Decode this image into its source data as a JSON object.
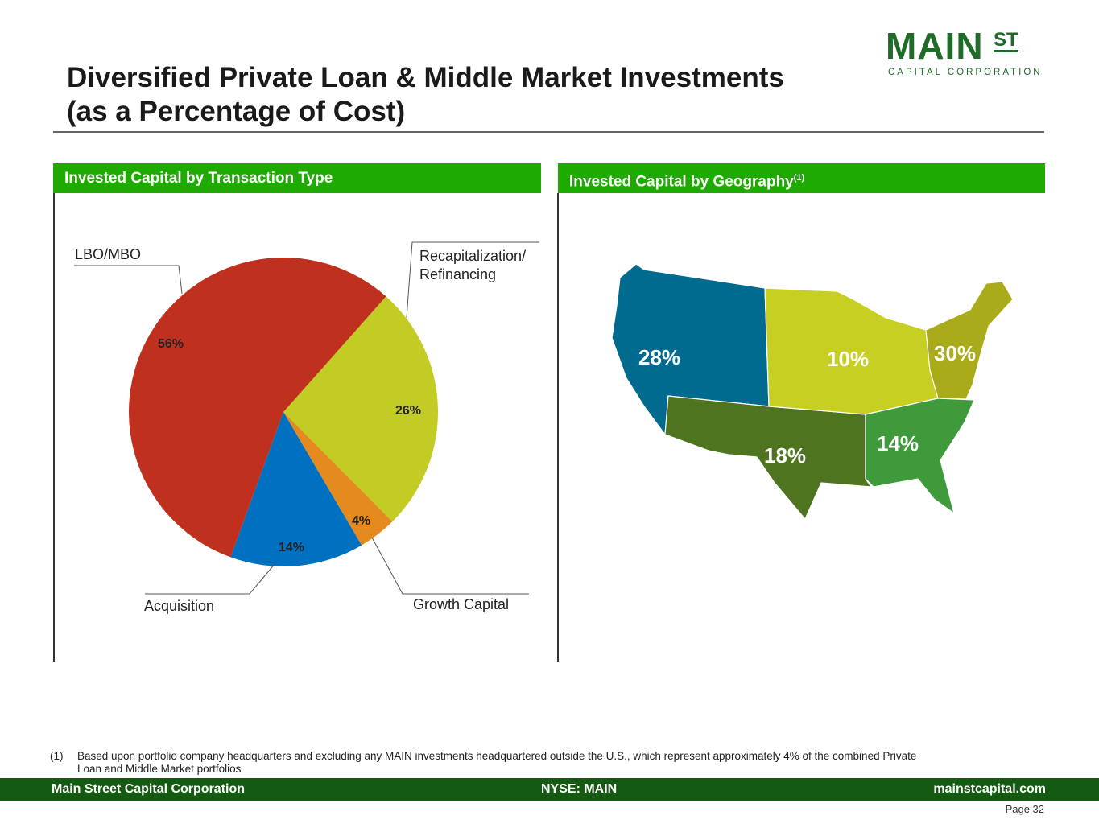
{
  "header": {
    "title_line1": "Diversified Private Loan & Middle Market Investments",
    "title_line2": "(as a Percentage of Cost)"
  },
  "logo": {
    "main": "MAIN",
    "st": "ST",
    "sub": "CAPITAL CORPORATION"
  },
  "panels": {
    "left_title": "Invested Capital by Transaction Type",
    "right_title": "Invested Capital by Geography",
    "right_sup": "(1)"
  },
  "chart_data": [
    {
      "type": "pie",
      "title": "Invested Capital by Transaction Type",
      "categories": [
        "Recapitalization/ Refinancing",
        "Growth Capital",
        "Acquisition",
        "LBO/MBO"
      ],
      "values": [
        26,
        4,
        14,
        56
      ],
      "labels": [
        "26%",
        "4%",
        "14%",
        "56%"
      ],
      "colors": [
        "#c2cc24",
        "#e58a1e",
        "#0070c0",
        "#bf311e"
      ]
    },
    {
      "type": "map",
      "title": "Invested Capital by Geography",
      "regions": [
        {
          "name": "West",
          "value": 28,
          "label": "28%",
          "color": "#006a8f"
        },
        {
          "name": "Midwest",
          "value": 10,
          "label": "10%",
          "color": "#c8cf23"
        },
        {
          "name": "Northeast",
          "value": 30,
          "label": "30%",
          "color": "#a9ab1a"
        },
        {
          "name": "Southwest",
          "value": 18,
          "label": "18%",
          "color": "#4e7420"
        },
        {
          "name": "Southeast",
          "value": 14,
          "label": "14%",
          "color": "#3f9a3c"
        }
      ]
    }
  ],
  "pie_labels": {
    "lbo": "LBO/MBO",
    "recap1": "Recapitalization/",
    "recap2": "Refinancing",
    "acq": "Acquisition",
    "growth": "Growth Capital"
  },
  "footnote": {
    "num": "(1)",
    "text1": "Based upon portfolio company headquarters and excluding any MAIN investments headquartered outside the U.S., which represent approximately 4% of the combined Private",
    "text2": "Loan and Middle Market portfolios"
  },
  "footer": {
    "left": "Main Street Capital Corporation",
    "center": "NYSE: MAIN",
    "right": "mainstcapital.com",
    "page": "Page  32"
  }
}
